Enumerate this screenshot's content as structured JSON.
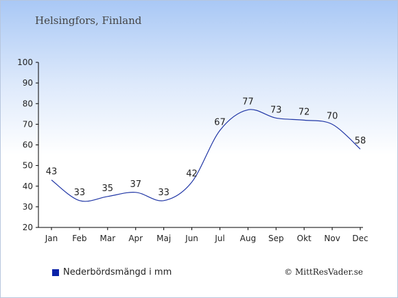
{
  "location": "Helsingfors, Finland",
  "legend": {
    "label": "Nederbördsmängd i mm",
    "color": "#0a22a8"
  },
  "copyright": "© MittResVader.se",
  "colors": {
    "line": "#1f35a5",
    "axis": "#000000",
    "text": "#222222"
  },
  "chart_data": {
    "type": "line",
    "categories": [
      "Jan",
      "Feb",
      "Mar",
      "Apr",
      "Maj",
      "Jun",
      "Jul",
      "Aug",
      "Sep",
      "Okt",
      "Nov",
      "Dec"
    ],
    "series": [
      {
        "name": "Nederbördsmängd i mm",
        "values": [
          43,
          33,
          35,
          37,
          33,
          42,
          67,
          77,
          73,
          72,
          70,
          58
        ]
      }
    ],
    "yticks": [
      20,
      30,
      40,
      50,
      60,
      70,
      80,
      90,
      100
    ],
    "ylim": [
      20,
      100
    ],
    "grid": false,
    "legend_position": "bottom-left",
    "data_labels": true
  }
}
